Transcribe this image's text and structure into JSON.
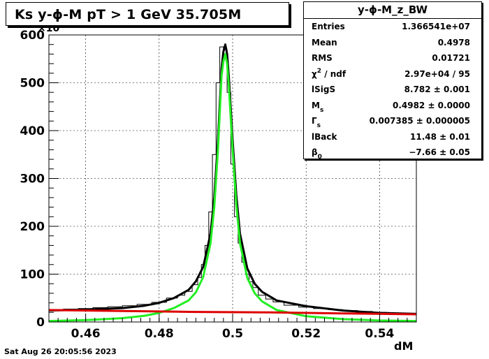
{
  "title": "Ks y-ϕ-M pT > 1 GeV   35.705M",
  "footer": "Sat Aug 26 20:05:56 2023",
  "stats": {
    "title": "y-ϕ-M_z_BW",
    "entries_label": "Entries",
    "entries_value": "1.366541e+07",
    "mean_label": "Mean",
    "mean_value": "0.4978",
    "rms_label": "RMS",
    "rms_value": "0.01721",
    "chi_label_base": "χ",
    "chi_label_sup": "2",
    "chi_label_rest": " / ndf",
    "chi_value": "2.97e+04 / 95",
    "lsigs_label": "lSigS",
    "lsigs_value": "8.782 ± 0.001",
    "ms_label_base": "M",
    "ms_label_sub": "s",
    "ms_value": "0.4982 ± 0.0000",
    "gs_label_base": "Γ",
    "gs_label_sub": "s",
    "gs_value": "0.007385 ± 0.000005",
    "lback_label": "lBack",
    "lback_value": "11.48 ± 0.01",
    "b0_label_base": "β",
    "b0_label_sub": "0",
    "b0_value": "−7.66 ± 0.05"
  },
  "chart_data": {
    "type": "line",
    "xlabel": "dM",
    "ylabel": "",
    "y_exponent_label": "×10",
    "xlim": [
      0.45,
      0.55
    ],
    "ylim": [
      0,
      600
    ],
    "x_ticks": [
      "0.46",
      "0.48",
      "0.5",
      "0.52",
      "0.54"
    ],
    "x_tick_values": [
      0.46,
      0.48,
      0.5,
      0.52,
      0.54
    ],
    "y_ticks": [
      "0",
      "100",
      "200",
      "300",
      "400",
      "500",
      "600"
    ],
    "y_tick_values": [
      0,
      100,
      200,
      300,
      400,
      500,
      600
    ],
    "grid": true,
    "colors": {
      "histogram": "#000000",
      "total_fit": "#000000",
      "signal": "#22ee22",
      "background": "#dd0000"
    },
    "series": [
      {
        "kind": "histogram",
        "x": [
          0.452,
          0.456,
          0.46,
          0.464,
          0.468,
          0.472,
          0.476,
          0.48,
          0.484,
          0.486,
          0.488,
          0.49,
          0.491,
          0.492,
          0.493,
          0.494,
          0.495,
          0.496,
          0.497,
          0.498,
          0.499,
          0.5,
          0.501,
          0.502,
          0.503,
          0.504,
          0.505,
          0.506,
          0.508,
          0.51,
          0.512,
          0.516,
          0.52,
          0.524,
          0.528,
          0.532,
          0.536,
          0.54,
          0.544,
          0.548
        ],
        "y": [
          26,
          27,
          28,
          30,
          32,
          34,
          37,
          41,
          50,
          56,
          64,
          78,
          93,
          120,
          160,
          230,
          350,
          500,
          575,
          570,
          480,
          330,
          220,
          165,
          125,
          100,
          84,
          72,
          56,
          48,
          42,
          35,
          31,
          28,
          26,
          24,
          22,
          20,
          19,
          17
        ]
      },
      {
        "kind": "total_fit",
        "x": [
          0.45,
          0.46,
          0.47,
          0.476,
          0.48,
          0.484,
          0.488,
          0.49,
          0.492,
          0.494,
          0.495,
          0.496,
          0.497,
          0.4975,
          0.498,
          0.4985,
          0.499,
          0.5,
          0.501,
          0.502,
          0.504,
          0.506,
          0.508,
          0.512,
          0.52,
          0.53,
          0.54,
          0.55
        ],
        "y": [
          24,
          26,
          29,
          34,
          40,
          50,
          67,
          85,
          115,
          185,
          260,
          380,
          530,
          565,
          580,
          560,
          510,
          380,
          265,
          185,
          112,
          80,
          63,
          45,
          33,
          24,
          19,
          17
        ]
      },
      {
        "kind": "signal",
        "x": [
          0.45,
          0.46,
          0.47,
          0.476,
          0.48,
          0.484,
          0.488,
          0.49,
          0.492,
          0.494,
          0.495,
          0.496,
          0.497,
          0.4975,
          0.498,
          0.4985,
          0.499,
          0.5,
          0.501,
          0.502,
          0.504,
          0.506,
          0.508,
          0.512,
          0.52,
          0.53,
          0.54,
          0.55
        ],
        "y": [
          2,
          4,
          8,
          13,
          19,
          29,
          45,
          62,
          94,
          165,
          240,
          360,
          515,
          545,
          560,
          540,
          490,
          360,
          245,
          165,
          92,
          60,
          43,
          25,
          12,
          6,
          3,
          2
        ]
      },
      {
        "kind": "background",
        "x": [
          0.45,
          0.47,
          0.49,
          0.51,
          0.53,
          0.55
        ],
        "y": [
          25,
          23,
          21,
          20,
          18,
          16
        ]
      }
    ]
  }
}
